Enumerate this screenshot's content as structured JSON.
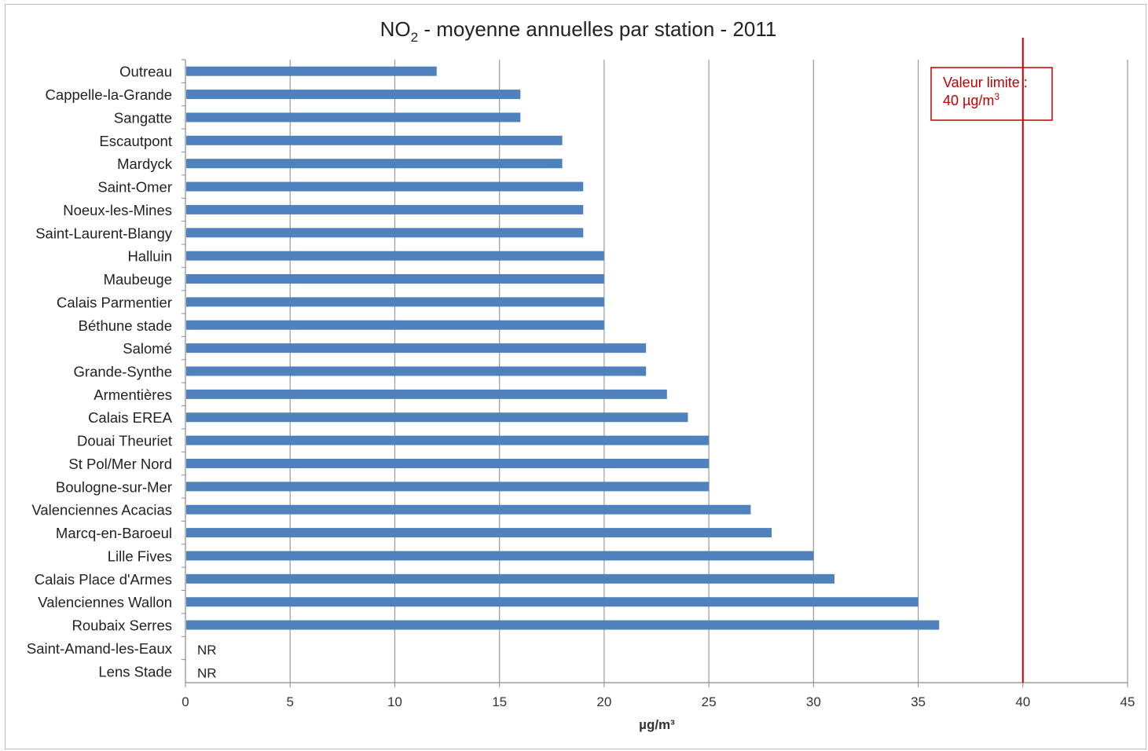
{
  "chart_data": {
    "type": "bar",
    "orientation": "horizontal",
    "title": "NO",
    "title_sub": "2",
    "title_rest": " - moyenne annuelles par station - 2011",
    "xlabel": "µg/m³",
    "xlim": [
      0,
      45
    ],
    "xticks": [
      "0",
      "5",
      "10",
      "15",
      "20",
      "25",
      "30",
      "35",
      "40",
      "45"
    ],
    "grid": true,
    "bar_color": "#4f81bd",
    "categories": [
      "Outreau",
      "Cappelle-la-Grande",
      "Sangatte",
      "Escautpont",
      "Mardyck",
      "Saint-Omer",
      "Noeux-les-Mines",
      "Saint-Laurent-Blangy",
      "Halluin",
      "Maubeuge",
      "Calais Parmentier",
      "Béthune stade",
      "Salomé",
      "Grande-Synthe",
      "Armentières",
      "Calais EREA",
      "Douai Theuriet",
      "St Pol/Mer Nord",
      "Boulogne-sur-Mer",
      "Valenciennes Acacias",
      "Marcq-en-Baroeul",
      "Lille Fives",
      "Calais Place d'Armes",
      "Valenciennes Wallon",
      "Roubaix Serres",
      "Saint-Amand-les-Eaux",
      "Lens Stade"
    ],
    "values": [
      12,
      16,
      16,
      18,
      18,
      19,
      19,
      19,
      20,
      20,
      20,
      20,
      22,
      22,
      23,
      24,
      25,
      25,
      25,
      27,
      28,
      30,
      31,
      35,
      36,
      null,
      null
    ],
    "missing_labels": [
      "",
      "",
      "",
      "",
      "",
      "",
      "",
      "",
      "",
      "",
      "",
      "",
      "",
      "",
      "",
      "",
      "",
      "",
      "",
      "",
      "",
      "",
      "",
      "",
      "",
      "NR",
      "NR"
    ],
    "limit_line": {
      "value": 40,
      "color": "#c00000",
      "label_line1": "Valeur limite :",
      "label_line2": "40 µg/m",
      "label_sup": "3"
    }
  }
}
